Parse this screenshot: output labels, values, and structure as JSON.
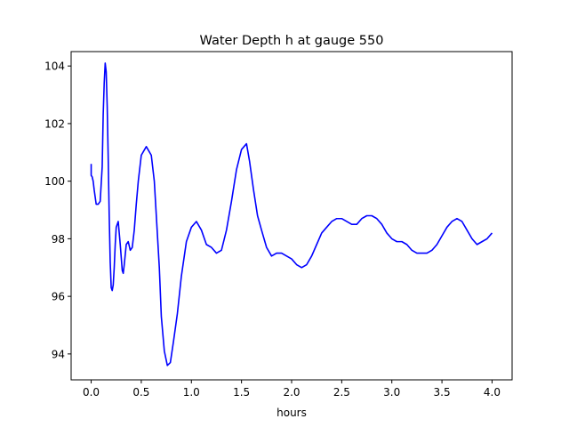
{
  "chart_data": {
    "type": "line",
    "title": "Water Depth h at gauge 550",
    "xlabel": "hours",
    "ylabel": "",
    "xlim": [
      -0.2,
      4.2
    ],
    "ylim": [
      93.1,
      104.5
    ],
    "grid": false,
    "x_ticks": [
      0.0,
      0.5,
      1.0,
      1.5,
      2.0,
      2.5,
      3.0,
      3.5,
      4.0
    ],
    "x_tick_labels": [
      "0.0",
      "0.5",
      "1.0",
      "1.5",
      "2.0",
      "2.5",
      "3.0",
      "3.5",
      "4.0"
    ],
    "y_ticks": [
      94,
      96,
      98,
      100,
      102,
      104
    ],
    "y_tick_labels": [
      "94",
      "96",
      "98",
      "100",
      "102",
      "104"
    ],
    "series": [
      {
        "color": "#0000ff",
        "x": [
          0.0,
          0.0,
          0.01,
          0.02,
          0.03,
          0.05,
          0.07,
          0.09,
          0.11,
          0.12,
          0.13,
          0.14,
          0.15,
          0.16,
          0.17,
          0.18,
          0.19,
          0.2,
          0.21,
          0.22,
          0.23,
          0.24,
          0.25,
          0.27,
          0.29,
          0.31,
          0.32,
          0.33,
          0.35,
          0.37,
          0.39,
          0.41,
          0.43,
          0.45,
          0.47,
          0.5,
          0.55,
          0.6,
          0.63,
          0.65,
          0.68,
          0.7,
          0.73,
          0.76,
          0.79,
          0.82,
          0.84,
          0.86,
          0.9,
          0.95,
          1.0,
          1.05,
          1.1,
          1.15,
          1.2,
          1.25,
          1.3,
          1.35,
          1.4,
          1.45,
          1.5,
          1.55,
          1.58,
          1.62,
          1.66,
          1.7,
          1.75,
          1.8,
          1.85,
          1.9,
          1.95,
          2.0,
          2.05,
          2.1,
          2.15,
          2.2,
          2.25,
          2.3,
          2.35,
          2.4,
          2.45,
          2.5,
          2.55,
          2.6,
          2.65,
          2.7,
          2.75,
          2.8,
          2.85,
          2.9,
          2.95,
          3.0,
          3.05,
          3.1,
          3.15,
          3.2,
          3.25,
          3.3,
          3.35,
          3.4,
          3.45,
          3.5,
          3.55,
          3.6,
          3.65,
          3.7,
          3.75,
          3.8,
          3.85,
          3.9,
          3.95,
          4.0
        ],
        "values": [
          100.6,
          100.2,
          100.15,
          100.0,
          99.7,
          99.2,
          99.2,
          99.3,
          100.5,
          102.3,
          103.4,
          104.1,
          103.8,
          102.6,
          100.8,
          98.8,
          97.2,
          96.3,
          96.2,
          96.4,
          97.0,
          97.8,
          98.4,
          98.6,
          97.8,
          96.9,
          96.8,
          97.1,
          97.8,
          97.9,
          97.6,
          97.7,
          98.3,
          99.2,
          100.0,
          100.9,
          101.2,
          100.9,
          100.0,
          98.8,
          97.0,
          95.3,
          94.1,
          93.6,
          93.7,
          94.4,
          94.9,
          95.4,
          96.7,
          97.9,
          98.4,
          98.6,
          98.3,
          97.8,
          97.7,
          97.5,
          97.6,
          98.3,
          99.3,
          100.4,
          101.1,
          101.3,
          100.7,
          99.7,
          98.8,
          98.3,
          97.7,
          97.4,
          97.5,
          97.5,
          97.4,
          97.3,
          97.1,
          97.0,
          97.1,
          97.4,
          97.8,
          98.2,
          98.4,
          98.6,
          98.7,
          98.7,
          98.6,
          98.5,
          98.5,
          98.7,
          98.8,
          98.8,
          98.7,
          98.5,
          98.2,
          98.0,
          97.9,
          97.9,
          97.8,
          97.6,
          97.5,
          97.5,
          97.5,
          97.6,
          97.8,
          98.1,
          98.4,
          98.6,
          98.7,
          98.6,
          98.3,
          98.0,
          97.8,
          97.9,
          98.0,
          98.2
        ]
      }
    ]
  }
}
